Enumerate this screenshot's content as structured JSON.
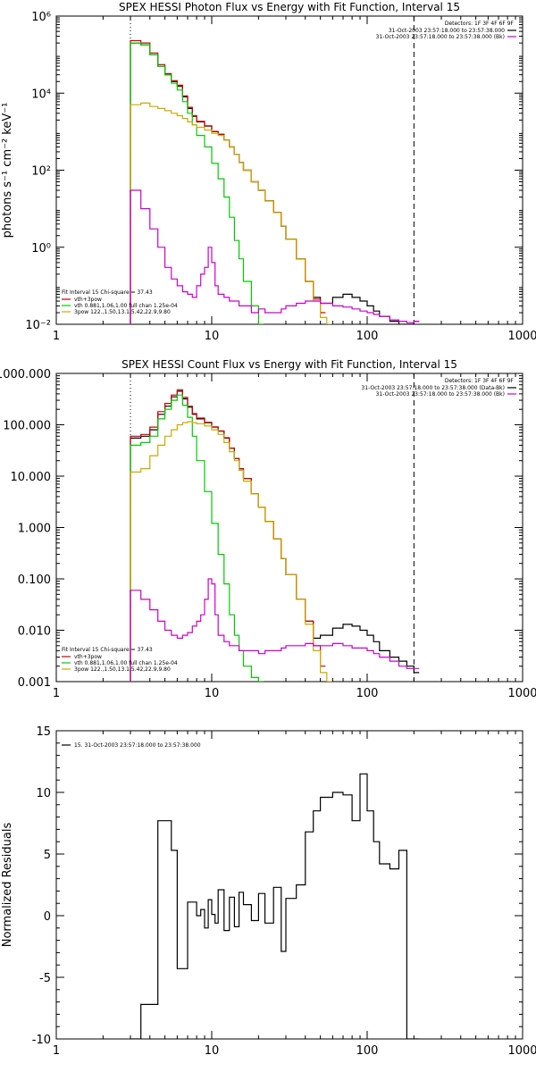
{
  "chart_data": [
    {
      "type": "line",
      "title": "SPEX HESSI Photon Flux vs Energy with Fit Function, Interval 15",
      "ylabel": "photons s⁻¹ cm⁻² keV⁻¹",
      "xlabel": "",
      "xlim": [
        1,
        1000
      ],
      "ylim": [
        0.01,
        1000000
      ],
      "xscale": "log",
      "yscale": "log",
      "x_ticks": [
        "1",
        "10",
        "100",
        "1000"
      ],
      "y_ticks": [
        "10⁻²",
        "10⁰",
        "10²",
        "10⁴",
        "10⁶"
      ],
      "vlines": [
        {
          "x": 3.0,
          "style": "dotted"
        },
        {
          "x": 200.0,
          "style": "dashed"
        }
      ],
      "header": {
        "detectors": "Detectors: 1F 3F 4F 6F 9F",
        "lines": [
          {
            "text": "31-Oct-2003 23:57:18.000 to 23:57:38.000",
            "color": "#000000"
          },
          {
            "text": "31-Oct-2003 23:57:18.000 to 23:57:38.000 (Bk)",
            "color": "#cc00cc"
          }
        ]
      },
      "legend": {
        "position": "bottom-left",
        "title": "Fit Interval 15   Chi-square = 37.43",
        "entries": [
          {
            "text": "vth+3pow",
            "color": "#cc0000"
          },
          {
            "text": "vth 0.881,1.06,1.00  full chan 1.25e-04",
            "color": "#00cc00"
          },
          {
            "text": "3pow 122.,1.50,13.1,5.42,22.9,9.80",
            "color": "#ccaa00"
          }
        ]
      },
      "series": [
        {
          "color": "#000000",
          "x": [
            3,
            3.5,
            4,
            4.5,
            5,
            5.5,
            6,
            6.5,
            7,
            7.5,
            8,
            9,
            10,
            11,
            12,
            13,
            14,
            15,
            16,
            18,
            20,
            22,
            25,
            28,
            30,
            35,
            40,
            45,
            50,
            60,
            70,
            80,
            90,
            100,
            110,
            120,
            140,
            160,
            180,
            200
          ],
          "values": [
            200000,
            180000,
            100000,
            50000,
            30000,
            20000,
            15000,
            8000,
            4000,
            2500,
            1800,
            1400,
            1000,
            850,
            600,
            400,
            260,
            160,
            100,
            50,
            30,
            16,
            8,
            3.5,
            1.6,
            0.5,
            0.13,
            0.05,
            0.035,
            0.05,
            0.06,
            0.05,
            0.04,
            0.03,
            0.022,
            0.016,
            0.012,
            0.01,
            0.01,
            0.012
          ]
        },
        {
          "color": "#cc0000",
          "x": [
            3,
            3.5,
            4,
            4.5,
            5,
            5.5,
            6,
            6.5,
            7,
            7.5,
            8,
            9,
            10,
            11,
            12,
            13,
            14,
            15,
            16,
            18,
            20,
            22,
            25,
            28,
            30,
            35,
            40,
            45,
            50
          ],
          "values": [
            230000,
            200000,
            110000,
            55000,
            32000,
            21000,
            16000,
            8500,
            4300,
            2600,
            1850,
            1420,
            1010,
            850,
            600,
            400,
            260,
            160,
            100,
            50,
            30,
            16,
            8,
            3.5,
            1.6,
            0.5,
            0.13,
            0.045,
            0.02
          ]
        },
        {
          "color": "#00cc00",
          "x": [
            3,
            3.5,
            4,
            4.5,
            5,
            5.5,
            6,
            6.5,
            7,
            7.5,
            8,
            9,
            10,
            11,
            12,
            13,
            14,
            15,
            16,
            18,
            20
          ],
          "values": [
            200000,
            180000,
            100000,
            50000,
            30000,
            18000,
            12000,
            6000,
            3000,
            1500,
            800,
            400,
            150,
            60,
            20,
            6,
            1.5,
            0.5,
            0.13,
            0.03,
            0.01
          ]
        },
        {
          "color": "#ccaa00",
          "x": [
            3,
            3.5,
            4,
            4.5,
            5,
            5.5,
            6,
            6.5,
            7,
            7.5,
            8,
            9,
            10,
            11,
            12,
            13,
            14,
            15,
            16,
            18,
            20,
            22,
            25,
            28,
            30,
            35,
            40,
            45,
            50,
            55
          ],
          "values": [
            5000,
            5500,
            4500,
            4000,
            3500,
            3000,
            2600,
            2200,
            1800,
            1500,
            1300,
            1100,
            900,
            800,
            600,
            400,
            260,
            160,
            100,
            50,
            30,
            16,
            8,
            3.5,
            1.6,
            0.5,
            0.13,
            0.04,
            0.015,
            0.01
          ]
        },
        {
          "color": "#cc00cc",
          "x": [
            3,
            3.5,
            4,
            4.5,
            5,
            5.5,
            6,
            6.5,
            7,
            7.5,
            8,
            8.5,
            9,
            9.5,
            10,
            10.5,
            11,
            12,
            13,
            14,
            15,
            16,
            18,
            20,
            22,
            25,
            28,
            30,
            35,
            40,
            45,
            50,
            60,
            70,
            80,
            90,
            100,
            110,
            120,
            140,
            160,
            180,
            200
          ],
          "values": [
            30,
            10,
            3,
            1,
            0.3,
            0.15,
            0.1,
            0.07,
            0.06,
            0.05,
            0.1,
            0.2,
            0.3,
            1.0,
            0.4,
            0.1,
            0.06,
            0.05,
            0.04,
            0.04,
            0.03,
            0.03,
            0.02,
            0.025,
            0.02,
            0.02,
            0.025,
            0.03,
            0.035,
            0.04,
            0.04,
            0.035,
            0.03,
            0.028,
            0.025,
            0.022,
            0.02,
            0.018,
            0.016,
            0.013,
            0.012,
            0.011,
            0.012
          ]
        }
      ]
    },
    {
      "type": "line",
      "title": "SPEX HESSI Count Flux vs Energy with Fit Function, Interval 15",
      "ylabel": "",
      "xlabel": "",
      "xlim": [
        1,
        1000
      ],
      "ylim": [
        0.001,
        1000
      ],
      "xscale": "log",
      "yscale": "log",
      "x_ticks": [
        "1",
        "10",
        "100",
        "1000"
      ],
      "y_ticks": [
        "0.001",
        "0.010",
        "0.100",
        "1.000",
        "10.000",
        "100.000",
        "1000.000"
      ],
      "vlines": [
        {
          "x": 3.0,
          "style": "dotted"
        },
        {
          "x": 200.0,
          "style": "dashed"
        }
      ],
      "header": {
        "detectors": "Detectors: 1F 3F 4F 6F 9F",
        "lines": [
          {
            "text": "31-Oct-2003 23:57:18.000 to 23:57:38.000 (Data-Bk)",
            "color": "#000000"
          },
          {
            "text": "31-Oct-2003 23:57:18.000 to 23:57:38.000 (Bk)",
            "color": "#cc00cc"
          }
        ]
      },
      "legend": {
        "position": "bottom-left",
        "title": "Fit Interval 15   Chi-square = 37.43",
        "entries": [
          {
            "text": "vth+3pow",
            "color": "#cc0000"
          },
          {
            "text": "vth 0.881,1.06,1.00  full chan 1.25e-04",
            "color": "#00cc00"
          },
          {
            "text": "3pow 122.,1.50,13.1,5.42,22.9,9.80",
            "color": "#ccaa00"
          }
        ]
      },
      "series": [
        {
          "color": "#000000",
          "x": [
            3,
            3.5,
            4,
            4.5,
            5,
            5.5,
            6,
            6.5,
            7,
            7.5,
            8,
            9,
            10,
            11,
            12,
            13,
            14,
            15,
            16,
            18,
            20,
            22,
            25,
            28,
            30,
            35,
            40,
            45,
            50,
            60,
            70,
            80,
            90,
            100,
            110,
            120,
            140,
            160,
            180,
            200
          ],
          "values": [
            55,
            60,
            80,
            160,
            230,
            350,
            450,
            320,
            220,
            160,
            130,
            110,
            90,
            75,
            55,
            35,
            22,
            14,
            9,
            4.5,
            2.5,
            1.3,
            0.6,
            0.25,
            0.12,
            0.04,
            0.015,
            0.007,
            0.008,
            0.011,
            0.013,
            0.012,
            0.01,
            0.008,
            0.006,
            0.004,
            0.003,
            0.0025,
            0.002,
            0.0015
          ]
        },
        {
          "color": "#cc0000",
          "x": [
            3,
            3.5,
            4,
            4.5,
            5,
            5.5,
            6,
            6.5,
            7,
            7.5,
            8,
            9,
            10,
            11,
            12,
            13,
            14,
            15,
            16,
            18,
            20,
            22,
            25,
            28,
            30,
            35,
            40,
            45,
            50
          ],
          "values": [
            60,
            65,
            90,
            180,
            260,
            380,
            480,
            340,
            230,
            165,
            135,
            112,
            91,
            76,
            56,
            35,
            22,
            14,
            9,
            4.5,
            2.5,
            1.3,
            0.6,
            0.25,
            0.12,
            0.04,
            0.015,
            0.005,
            0.002
          ]
        },
        {
          "color": "#00cc00",
          "x": [
            3,
            3.5,
            4,
            4.5,
            5,
            5.5,
            6,
            6.5,
            7,
            7.5,
            8,
            9,
            10,
            11,
            12,
            13,
            14,
            15,
            16,
            18,
            20
          ],
          "values": [
            40,
            45,
            60,
            130,
            200,
            300,
            380,
            240,
            140,
            60,
            20,
            5,
            1.2,
            0.3,
            0.08,
            0.02,
            0.008,
            0.004,
            0.002,
            0.0012,
            0.001
          ]
        },
        {
          "color": "#ccaa00",
          "x": [
            3,
            3.5,
            4,
            4.5,
            5,
            5.5,
            6,
            6.5,
            7,
            7.5,
            8,
            9,
            10,
            11,
            12,
            13,
            14,
            15,
            16,
            18,
            20,
            22,
            25,
            28,
            30,
            35,
            40,
            45,
            50,
            55
          ],
          "values": [
            12,
            14,
            25,
            40,
            60,
            80,
            100,
            110,
            115,
            110,
            105,
            95,
            80,
            65,
            45,
            30,
            20,
            13,
            8,
            4.5,
            2.5,
            1.3,
            0.6,
            0.25,
            0.12,
            0.04,
            0.013,
            0.004,
            0.0015,
            0.001
          ]
        },
        {
          "color": "#cc00cc",
          "x": [
            3,
            3.5,
            4,
            4.5,
            5,
            5.5,
            6,
            6.5,
            7,
            7.5,
            8,
            8.5,
            9,
            9.5,
            10,
            10.5,
            11,
            12,
            13,
            14,
            15,
            16,
            18,
            20,
            22,
            25,
            28,
            30,
            35,
            40,
            45,
            50,
            60,
            70,
            80,
            90,
            100,
            110,
            120,
            140,
            160,
            180,
            200
          ],
          "values": [
            0.06,
            0.04,
            0.025,
            0.015,
            0.01,
            0.008,
            0.007,
            0.008,
            0.009,
            0.012,
            0.015,
            0.02,
            0.04,
            0.1,
            0.08,
            0.02,
            0.008,
            0.006,
            0.005,
            0.005,
            0.004,
            0.004,
            0.004,
            0.0035,
            0.004,
            0.004,
            0.0045,
            0.005,
            0.005,
            0.0055,
            0.005,
            0.005,
            0.0055,
            0.005,
            0.0045,
            0.0045,
            0.004,
            0.0035,
            0.003,
            0.0025,
            0.002,
            0.0018,
            0.0018
          ]
        }
      ]
    },
    {
      "type": "line",
      "title": "",
      "ylabel": "Normalized Residuals",
      "xlabel": "",
      "xlim": [
        1,
        1000
      ],
      "ylim": [
        -10,
        15
      ],
      "xscale": "log",
      "yscale": "linear",
      "x_ticks": [
        "1",
        "10",
        "100",
        "1000"
      ],
      "y_ticks": [
        "-10",
        "-5",
        "0",
        "5",
        "10",
        "15"
      ],
      "legend": {
        "position": "top-left",
        "entries": [
          {
            "text": "15. 31-Oct-2003 23:57:18.000 to 23:57:38.000",
            "color": "#000000"
          }
        ]
      },
      "series": [
        {
          "color": "#000000",
          "x": [
            3,
            3.5,
            4,
            4.5,
            5,
            5.5,
            6,
            6.5,
            7,
            7.5,
            8,
            8.5,
            9,
            9.5,
            10,
            10.5,
            11,
            12,
            13,
            14,
            15,
            16,
            18,
            20,
            22,
            25,
            28,
            30,
            35,
            40,
            45,
            50,
            60,
            70,
            80,
            90,
            100,
            110,
            120,
            140,
            160,
            180,
            200
          ],
          "values": [
            -10,
            -7.2,
            -7.2,
            7.7,
            7.7,
            5.3,
            -4.3,
            -4.3,
            1.1,
            1.1,
            0,
            0.5,
            -1.0,
            1.3,
            0.1,
            -0.6,
            2.1,
            -1.2,
            1.5,
            -0.9,
            1.9,
            0.9,
            -0.4,
            1.8,
            -0.6,
            2.3,
            -2.9,
            1.4,
            2.5,
            6.8,
            8.5,
            9.6,
            10.0,
            9.8,
            7.7,
            11.5,
            8.5,
            6.0,
            4.2,
            3.8,
            5.3,
            -10,
            -10
          ]
        }
      ]
    }
  ]
}
